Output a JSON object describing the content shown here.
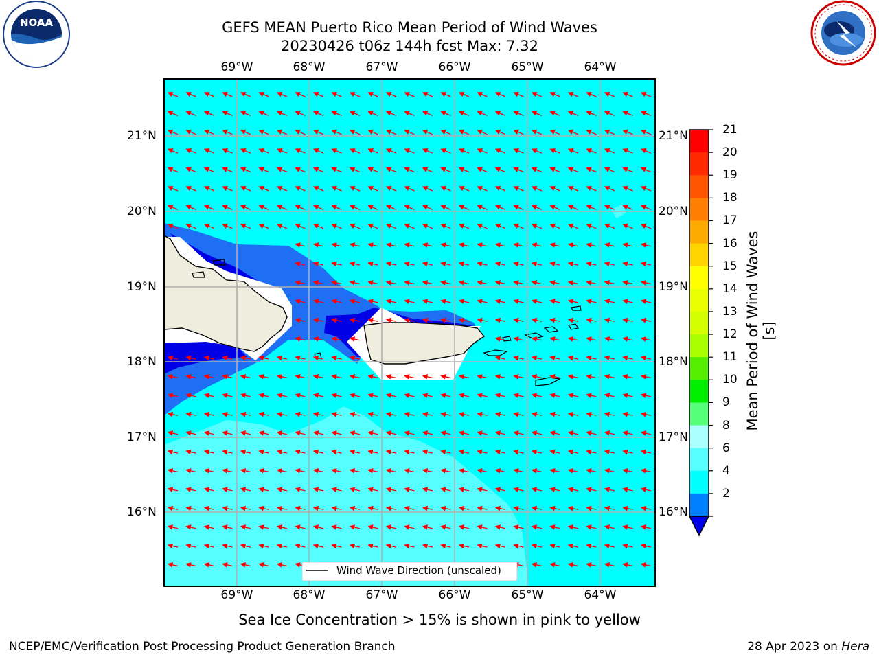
{
  "title": {
    "line1": "GEFS MEAN Puerto Rico Mean Period of Wind Waves",
    "line2": "20230426 t06z 144h fcst   Max: 7.32"
  },
  "logos": {
    "left": "noara-logo",
    "left_text": "NOAA",
    "left_ring_text": "NATIONAL OCEANIC AND ATMOSPHERIC ADMINISTRATION · U.S. DEPARTMENT OF COMMERCE",
    "right": "nws-logo",
    "right_ring_text": "NATIONAL WEATHER SERVICE"
  },
  "map": {
    "lon_labels": [
      "69°W",
      "68°W",
      "67°W",
      "66°W",
      "65°W",
      "64°W"
    ],
    "lat_labels": [
      "21°N",
      "20°N",
      "19°N",
      "18°N",
      "17°N",
      "16°N"
    ],
    "legend_label": "Wind Wave Direction (unscaled)",
    "ocean_color": "#00ffff",
    "land_color": "#efedde",
    "arrow_color": "#ff0000"
  },
  "colorbar": {
    "label": "Mean Period of Wind Waves [s]",
    "ticks": [
      "21",
      "20",
      "19",
      "18",
      "17",
      "16",
      "15",
      "14",
      "13",
      "12",
      "11",
      "10",
      "9",
      "8",
      "6",
      "4",
      "2"
    ],
    "colors": [
      "#ff0000",
      "#ff2a00",
      "#ff5500",
      "#ff7f00",
      "#ffaa00",
      "#ffd400",
      "#ffff00",
      "#eaff00",
      "#d4ff00",
      "#aaff00",
      "#55ee00",
      "#00ee00",
      "#55ff77",
      "#aaffff",
      "#55ffff",
      "#00ffff",
      "#0080ff"
    ],
    "under_color": "#0000e6"
  },
  "subtitle": "Sea Ice Concentration > 15% is shown in pink to yellow",
  "footer": {
    "left": "NCEP/EMC/Verification Post Processing Product Generation Branch",
    "right_prefix": "28 Apr 2023 on ",
    "right_italic": "Hera"
  }
}
